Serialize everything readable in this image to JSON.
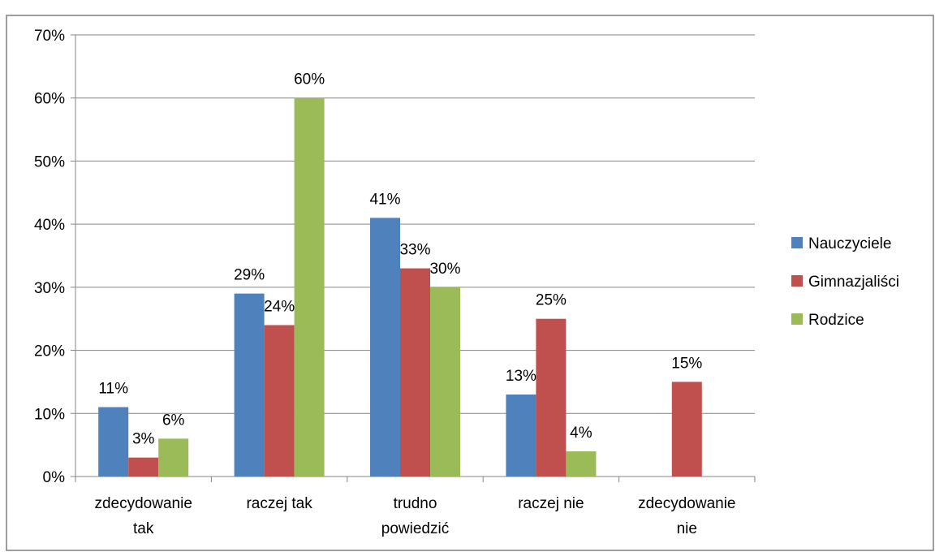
{
  "chart_data": {
    "type": "bar",
    "categories": [
      [
        "zdecydowanie",
        "tak"
      ],
      [
        "raczej tak"
      ],
      [
        "trudno",
        "powiedzić"
      ],
      [
        "raczej nie"
      ],
      [
        "zdecydowanie",
        "nie"
      ]
    ],
    "series": [
      {
        "name": "Nauczyciele",
        "color": "#4F81BD",
        "values": [
          11,
          29,
          41,
          13,
          null
        ]
      },
      {
        "name": "Gimnazjaliści",
        "color": "#C0504D",
        "values": [
          3,
          24,
          33,
          25,
          15
        ]
      },
      {
        "name": "Rodzice",
        "color": "#9BBB59",
        "values": [
          6,
          60,
          30,
          4,
          null
        ]
      }
    ],
    "data_labels": [
      [
        "11%",
        "29%",
        "41%",
        "13%",
        null
      ],
      [
        "3%",
        "24%",
        "33%",
        "25%",
        "15%"
      ],
      [
        "6%",
        "60%",
        "30%",
        "4%",
        null
      ]
    ],
    "y_ticks": [
      "0%",
      "10%",
      "20%",
      "30%",
      "40%",
      "50%",
      "60%",
      "70%"
    ],
    "ylim": [
      0,
      70
    ],
    "grid": true,
    "legend_position": "right",
    "title": "",
    "xlabel": "",
    "ylabel": ""
  }
}
